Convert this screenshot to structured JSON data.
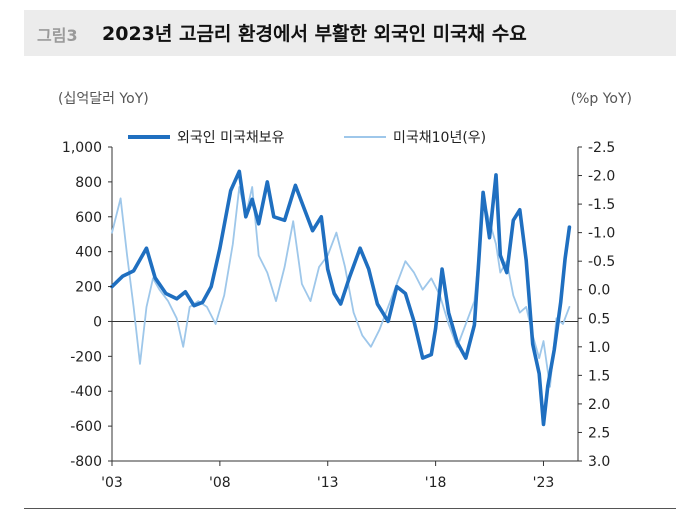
{
  "figure": {
    "label": "그림3",
    "title": "2023년 고금리 환경에서 부활한 외국인 미국채 수요"
  },
  "chart_data": {
    "type": "line",
    "left_unit": "(십억달러 YoY)",
    "right_unit": "(%p YoY)",
    "left_ylim": [
      -800,
      1000
    ],
    "right_ylim": [
      3.0,
      -2.5
    ],
    "left_ticks": [
      "1,000",
      "800",
      "600",
      "400",
      "200",
      "0",
      "-200",
      "-400",
      "-600",
      "-800"
    ],
    "right_ticks": [
      "-2.5",
      "-2.0",
      "-1.5",
      "-1.0",
      "-0.5",
      "0.0",
      "0.5",
      "1.0",
      "1.5",
      "2.0",
      "2.5",
      "3.0"
    ],
    "x_ticks": [
      "'03",
      "'08",
      "'13",
      "'18",
      "'23"
    ],
    "series": [
      {
        "name": "외국인 미국채보유",
        "axis": "left",
        "color": "#1f6fc0",
        "x": [
          2003.0,
          2003.5,
          2004.0,
          2004.6,
          2005.0,
          2005.5,
          2006.0,
          2006.4,
          2006.8,
          2007.2,
          2007.6,
          2008.0,
          2008.5,
          2008.9,
          2009.2,
          2009.5,
          2009.8,
          2010.2,
          2010.5,
          2011.0,
          2011.5,
          2011.9,
          2012.3,
          2012.7,
          2013.0,
          2013.3,
          2013.6,
          2014.0,
          2014.5,
          2014.9,
          2015.3,
          2015.8,
          2016.2,
          2016.6,
          2017.0,
          2017.4,
          2017.8,
          2018.0,
          2018.3,
          2018.6,
          2019.0,
          2019.4,
          2019.8,
          2020.0,
          2020.2,
          2020.5,
          2020.8,
          2021.0,
          2021.3,
          2021.6,
          2021.9,
          2022.2,
          2022.5,
          2022.8,
          2023.0,
          2023.2,
          2023.5,
          2023.8,
          2024.0,
          2024.2
        ],
        "values": [
          200,
          260,
          290,
          420,
          250,
          160,
          130,
          170,
          90,
          110,
          200,
          420,
          750,
          860,
          600,
          700,
          560,
          800,
          600,
          580,
          780,
          650,
          520,
          600,
          300,
          160,
          100,
          250,
          420,
          300,
          100,
          0,
          200,
          160,
          0,
          -210,
          -190,
          -40,
          300,
          50,
          -120,
          -210,
          -20,
          350,
          740,
          480,
          840,
          380,
          280,
          580,
          640,
          350,
          -130,
          -300,
          -590,
          -370,
          -160,
          110,
          360,
          540
        ]
      },
      {
        "name": "미국채10년(우)",
        "axis": "right",
        "color": "#9ec7ea",
        "x": [
          2003.0,
          2003.2,
          2003.4,
          2003.7,
          2004.0,
          2004.3,
          2004.6,
          2004.9,
          2005.2,
          2005.6,
          2006.0,
          2006.3,
          2006.6,
          2007.0,
          2007.4,
          2007.8,
          2008.2,
          2008.6,
          2008.9,
          2009.2,
          2009.5,
          2009.8,
          2010.2,
          2010.6,
          2011.0,
          2011.4,
          2011.8,
          2012.2,
          2012.6,
          2013.0,
          2013.4,
          2013.8,
          2014.2,
          2014.6,
          2015.0,
          2015.4,
          2015.8,
          2016.2,
          2016.6,
          2017.0,
          2017.4,
          2017.8,
          2018.2,
          2018.6,
          2019.0,
          2019.4,
          2019.8,
          2020.0,
          2020.2,
          2020.5,
          2020.8,
          2021.0,
          2021.3,
          2021.6,
          2021.9,
          2022.2,
          2022.5,
          2022.8,
          2023.0,
          2023.3,
          2023.6,
          2023.9,
          2024.2
        ],
        "values": [
          -1.0,
          -1.3,
          -1.6,
          -0.6,
          0.3,
          1.3,
          0.3,
          -0.2,
          0.0,
          0.2,
          0.5,
          1.0,
          0.3,
          0.2,
          0.3,
          0.6,
          0.1,
          -0.8,
          -1.8,
          -1.3,
          -1.8,
          -0.6,
          -0.3,
          0.2,
          -0.4,
          -1.2,
          -0.1,
          0.2,
          -0.4,
          -0.6,
          -1.0,
          -0.4,
          0.4,
          0.8,
          1.0,
          0.7,
          0.3,
          -0.1,
          -0.5,
          -0.3,
          0.0,
          -0.2,
          0.1,
          0.6,
          1.0,
          0.6,
          0.2,
          -0.6,
          -1.6,
          -1.2,
          -0.8,
          -0.3,
          -0.5,
          0.1,
          0.4,
          0.3,
          0.8,
          1.2,
          0.9,
          1.7,
          0.5,
          0.6,
          0.3
        ]
      }
    ]
  }
}
